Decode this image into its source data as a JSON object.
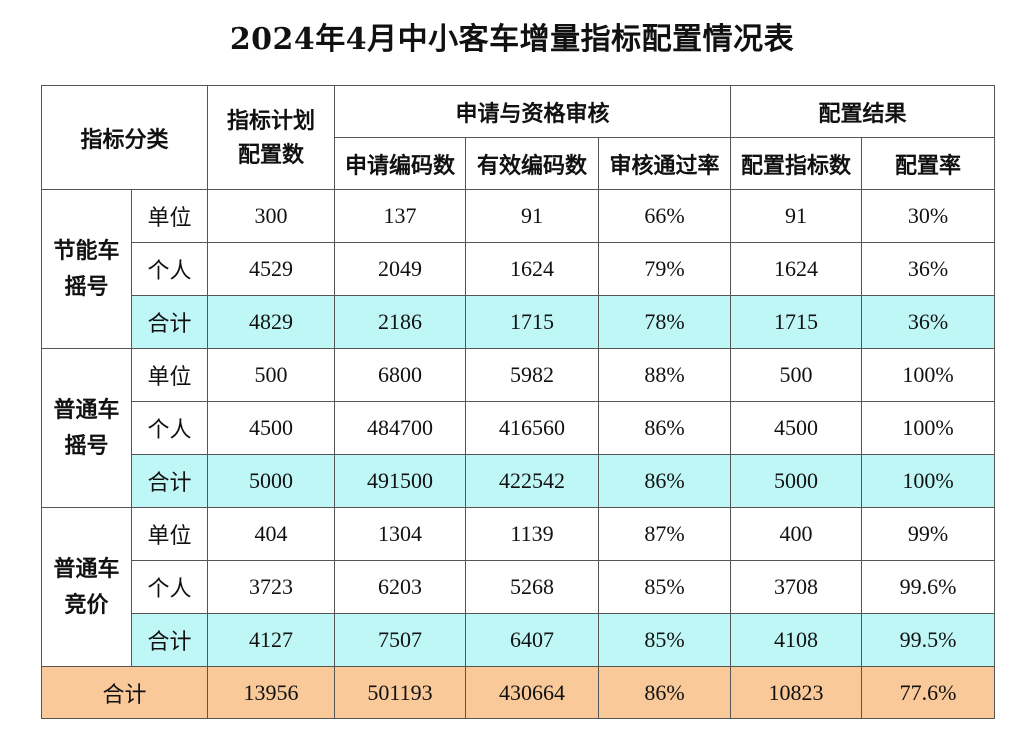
{
  "title": "2024年4月中小客车增量指标配置情况表",
  "header": {
    "category": "指标分类",
    "plan_line1": "指标计划",
    "plan_line2": "配置数",
    "group_application": "申请与资格审核",
    "group_result": "配置结果",
    "col_apply": "申请编码数",
    "col_valid": "有效编码数",
    "col_pass_rate": "审核通过率",
    "col_alloc": "配置指标数",
    "col_alloc_rate": "配置率"
  },
  "groups": [
    {
      "name_line1": "节能车",
      "name_line2": "摇号",
      "rows": [
        {
          "type": "单位",
          "plan": "300",
          "apply": "137",
          "valid": "91",
          "pass_rate": "66%",
          "alloc": "91",
          "alloc_rate": "30%"
        },
        {
          "type": "个人",
          "plan": "4529",
          "apply": "2049",
          "valid": "1624",
          "pass_rate": "79%",
          "alloc": "1624",
          "alloc_rate": "36%"
        },
        {
          "type": "合计",
          "plan": "4829",
          "apply": "2186",
          "valid": "1715",
          "pass_rate": "78%",
          "alloc": "1715",
          "alloc_rate": "36%"
        }
      ]
    },
    {
      "name_line1": "普通车",
      "name_line2": "摇号",
      "rows": [
        {
          "type": "单位",
          "plan": "500",
          "apply": "6800",
          "valid": "5982",
          "pass_rate": "88%",
          "alloc": "500",
          "alloc_rate": "100%"
        },
        {
          "type": "个人",
          "plan": "4500",
          "apply": "484700",
          "valid": "416560",
          "pass_rate": "86%",
          "alloc": "4500",
          "alloc_rate": "100%"
        },
        {
          "type": "合计",
          "plan": "5000",
          "apply": "491500",
          "valid": "422542",
          "pass_rate": "86%",
          "alloc": "5000",
          "alloc_rate": "100%"
        }
      ]
    },
    {
      "name_line1": "普通车",
      "name_line2": "竞价",
      "rows": [
        {
          "type": "单位",
          "plan": "404",
          "apply": "1304",
          "valid": "1139",
          "pass_rate": "87%",
          "alloc": "400",
          "alloc_rate": "99%"
        },
        {
          "type": "个人",
          "plan": "3723",
          "apply": "6203",
          "valid": "5268",
          "pass_rate": "85%",
          "alloc": "3708",
          "alloc_rate": "99.6%"
        },
        {
          "type": "合计",
          "plan": "4127",
          "apply": "7507",
          "valid": "6407",
          "pass_rate": "85%",
          "alloc": "4108",
          "alloc_rate": "99.5%"
        }
      ]
    }
  ],
  "total": {
    "label": "合计",
    "plan": "13956",
    "apply": "501193",
    "valid": "430664",
    "pass_rate": "86%",
    "alloc": "10823",
    "alloc_rate": "77.6%"
  },
  "colors": {
    "subtotal_row": "#bff7f7",
    "total_row": "#f9c99a",
    "border": "#555555"
  }
}
